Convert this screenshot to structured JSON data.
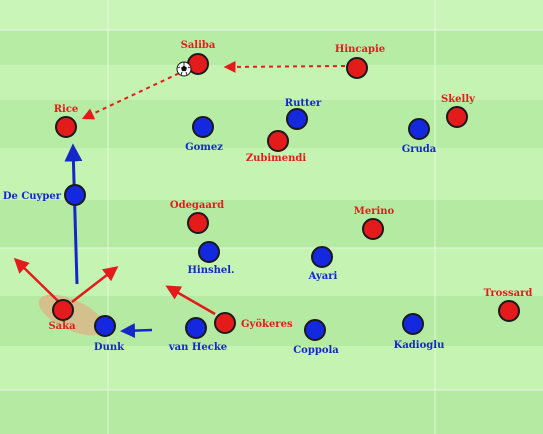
{
  "colors": {
    "pitch_light": "#c6f5b4",
    "pitch_dark": "#b2eb9f",
    "line": "#e8f8e0",
    "red_team": "#e31b1b",
    "blue_team": "#1428e0",
    "highlight": "#d9b98a"
  },
  "players": {
    "red": [
      {
        "id": "saliba",
        "label": "Saliba"
      },
      {
        "id": "hincapie",
        "label": "Hincapie"
      },
      {
        "id": "rice",
        "label": "Rice"
      },
      {
        "id": "skelly",
        "label": "Skelly"
      },
      {
        "id": "zubimendi",
        "label": "Zubimendi"
      },
      {
        "id": "odegaard",
        "label": "Odegaard"
      },
      {
        "id": "merino",
        "label": "Merino"
      },
      {
        "id": "saka",
        "label": "Saka"
      },
      {
        "id": "gyokeres",
        "label": "Gyökeres"
      },
      {
        "id": "trossard",
        "label": "Trossard"
      }
    ],
    "blue": [
      {
        "id": "rutter",
        "label": "Rutter"
      },
      {
        "id": "gomez",
        "label": "Gomez"
      },
      {
        "id": "gruda",
        "label": "Gruda"
      },
      {
        "id": "de-cuyper",
        "label": "De Cuyper"
      },
      {
        "id": "hinshel",
        "label": "Hinshel."
      },
      {
        "id": "ayari",
        "label": "Ayari"
      },
      {
        "id": "dunk",
        "label": "Dunk"
      },
      {
        "id": "van-hecke",
        "label": "van Hecke"
      },
      {
        "id": "coppola",
        "label": "Coppola"
      },
      {
        "id": "kadioglu",
        "label": "Kadioglu"
      }
    ]
  },
  "ball": {
    "icon": "football-icon",
    "holder": "saliba"
  },
  "arrows": [
    {
      "id": "pass-hincapie-saliba",
      "style": "dashed",
      "team": "red"
    },
    {
      "id": "pass-saliba-rice",
      "style": "dashed",
      "team": "red"
    },
    {
      "id": "run-de-cuyper",
      "style": "solid",
      "team": "blue"
    },
    {
      "id": "press-dunk",
      "style": "solid",
      "team": "blue"
    },
    {
      "id": "saka-option-left",
      "style": "solid",
      "team": "red"
    },
    {
      "id": "saka-option-right",
      "style": "solid",
      "team": "red"
    },
    {
      "id": "run-gyokeres",
      "style": "solid",
      "team": "red"
    }
  ]
}
